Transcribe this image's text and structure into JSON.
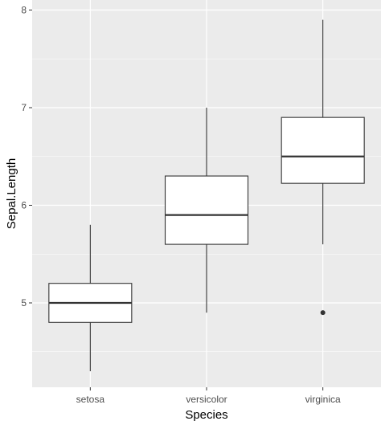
{
  "chart_data": {
    "type": "boxplot",
    "xlabel": "Species",
    "ylabel": "Sepal.Length",
    "categories": [
      "setosa",
      "versicolor",
      "virginica"
    ],
    "ylim": [
      4.2,
      8.05
    ],
    "yticks": [
      5,
      6,
      7,
      8
    ],
    "yticks_minor": [
      4.5,
      5.5,
      6.5,
      7.5
    ],
    "grid": true,
    "boxes": [
      {
        "category": "setosa",
        "whisker_low": 4.3,
        "q1": 4.8,
        "median": 5.0,
        "q3": 5.2,
        "whisker_high": 5.8,
        "outliers": []
      },
      {
        "category": "versicolor",
        "whisker_low": 4.9,
        "q1": 5.6,
        "median": 5.9,
        "q3": 6.3,
        "whisker_high": 7.0,
        "outliers": []
      },
      {
        "category": "virginica",
        "whisker_low": 5.6,
        "q1": 6.225,
        "median": 6.5,
        "q3": 6.9,
        "whisker_high": 7.9,
        "outliers": [
          4.9
        ]
      }
    ],
    "colors": {
      "panel_background": "#ebebeb",
      "grid_major": "#ffffff",
      "box_fill": "#ffffff",
      "box_stroke": "#333333",
      "outlier": "#333333",
      "tick_label": "#4d4d4d",
      "tick_mark": "#333333"
    }
  }
}
